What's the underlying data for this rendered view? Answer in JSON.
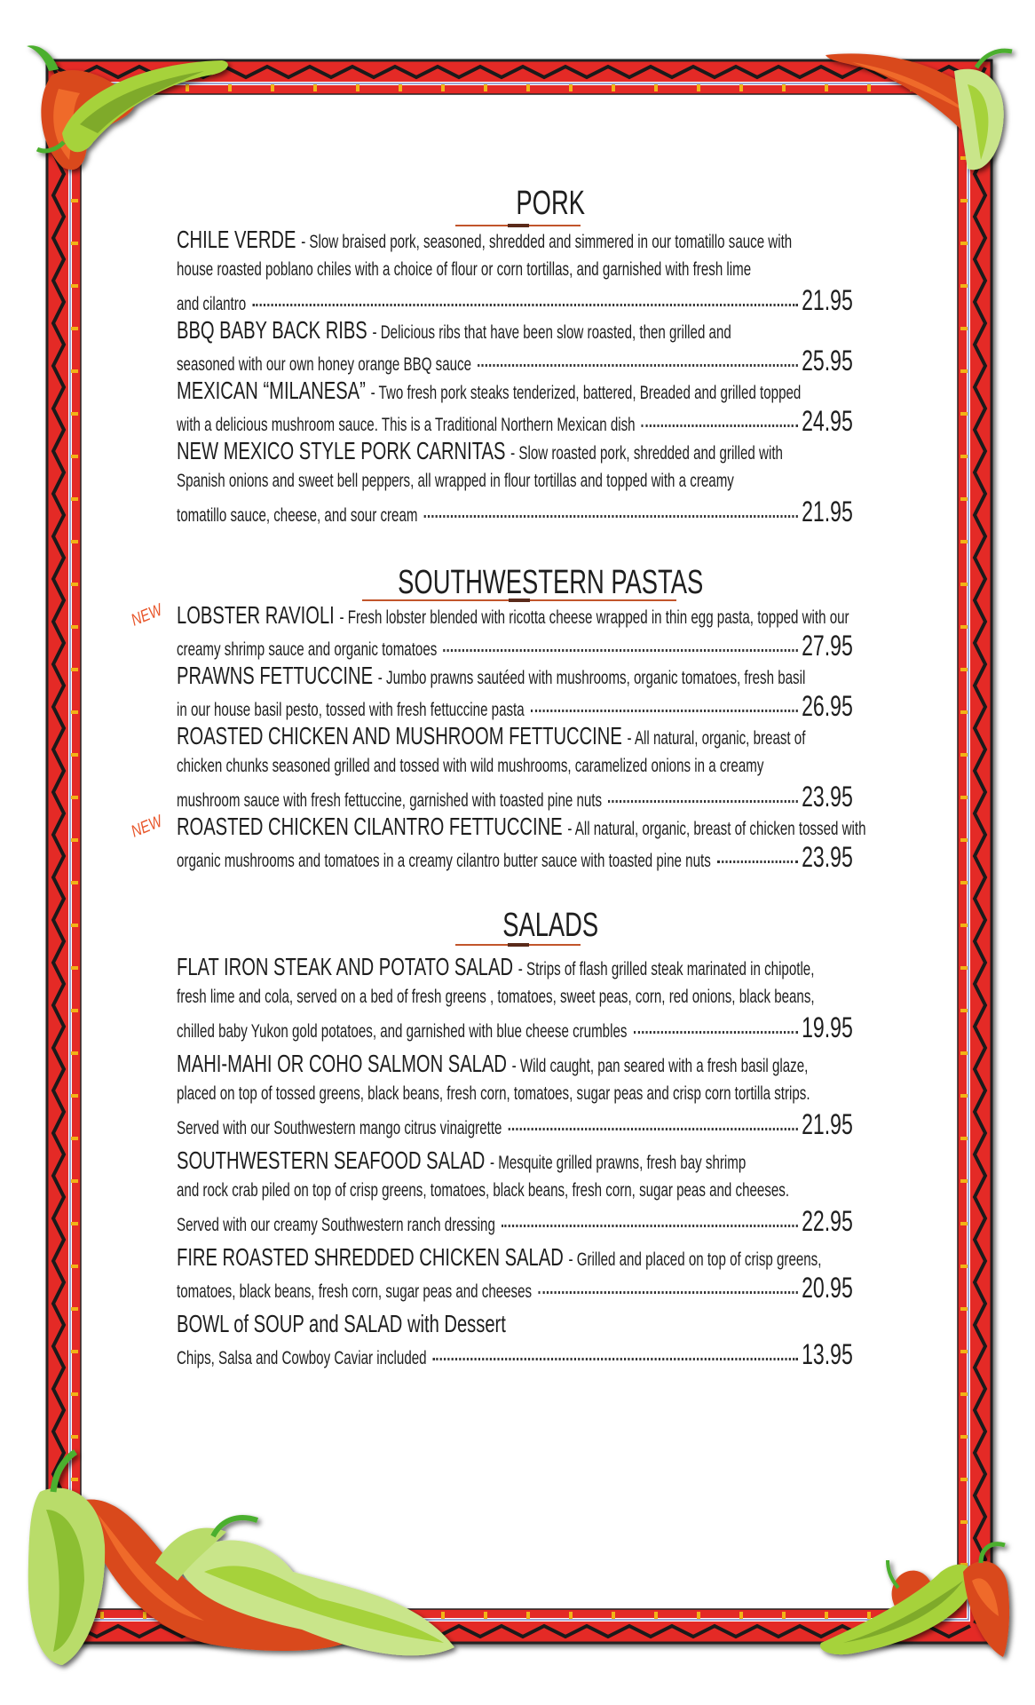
{
  "colors": {
    "frame_red": "#e42a25",
    "zigzag": "#1a1a1a",
    "accent_line": "#c2552b",
    "new_badge": "#e8562a",
    "stripe_blue": "#7f86c4",
    "tick_gold": "#f2b316"
  },
  "sections": [
    {
      "title": "PORK",
      "items": [
        {
          "name": "CHILE VERDE",
          "lines": [
            "- Slow braised pork, seasoned, shredded and simmered in our tomatillo sauce with",
            "house roasted poblano chiles with a choice of flour or corn tortillas, and garnished with fresh lime",
            "and cilantro"
          ],
          "price": "21.95"
        },
        {
          "name": "BBQ BABY BACK RIBS",
          "lines": [
            "- Delicious ribs that have been slow roasted, then grilled and",
            "seasoned with our own honey orange BBQ sauce"
          ],
          "price": "25.95"
        },
        {
          "name": "MEXICAN “MILANESA”",
          "lines": [
            "- Two fresh pork steaks tenderized, battered, Breaded and grilled topped",
            "with a delicious mushroom sauce. This is a Traditional Northern Mexican dish"
          ],
          "price": "24.95"
        },
        {
          "name": "NEW MEXICO STYLE PORK CARNITAS",
          "lines": [
            "- Slow roasted pork, shredded and grilled with",
            "Spanish onions and sweet bell peppers, all wrapped in flour tortillas and topped with a creamy",
            "tomatillo sauce, cheese, and sour cream"
          ],
          "price": "21.95"
        }
      ]
    },
    {
      "title": "SOUTHWESTERN PASTAS",
      "items": [
        {
          "badge": "NEW",
          "name": "LOBSTER RAVIOLI",
          "lines": [
            "- Fresh lobster blended with ricotta cheese wrapped in thin egg pasta, topped with our",
            "creamy shrimp sauce and organic tomatoes"
          ],
          "price": "27.95"
        },
        {
          "name": "PRAWNS FETTUCCINE",
          "lines": [
            "- Jumbo prawns sautéed with mushrooms, organic tomatoes, fresh basil",
            "in our house basil pesto, tossed with fresh fettuccine pasta"
          ],
          "price": "26.95"
        },
        {
          "name": "ROASTED CHICKEN AND MUSHROOM FETTUCCINE",
          "lines": [
            "- All natural, organic, breast of",
            "chicken chunks seasoned grilled and tossed with wild mushrooms, caramelized onions in a creamy",
            "mushroom sauce with fresh fettuccine, garnished with toasted pine nuts"
          ],
          "price": "23.95"
        },
        {
          "badge": "NEW",
          "name": "ROASTED CHICKEN CILANTRO FETTUCCINE",
          "lines": [
            "- All natural, organic, breast of chicken tossed with",
            "organic mushrooms and tomatoes in a creamy cilantro butter sauce with toasted pine nuts"
          ],
          "price": "23.95"
        }
      ]
    },
    {
      "title": "SALADS",
      "items": [
        {
          "name": "FLAT IRON STEAK AND POTATO SALAD",
          "lines": [
            "- Strips of flash grilled steak marinated in chipotle,",
            "fresh lime and cola, served on a bed of fresh greens , tomatoes, sweet peas, corn, red onions, black beans,",
            "chilled baby Yukon gold potatoes, and garnished with blue cheese crumbles"
          ],
          "price": "19.95"
        },
        {
          "name": "MAHI-MAHI OR COHO SALMON SALAD",
          "lines": [
            "- Wild caught, pan seared with a fresh basil glaze,",
            "placed on top of tossed greens, black beans, fresh corn, tomatoes, sugar peas and crisp corn tortilla strips.",
            "Served with our Southwestern mango citrus vinaigrette"
          ],
          "price": "21.95"
        },
        {
          "name": "SOUTHWESTERN SEAFOOD SALAD",
          "lines": [
            "- Mesquite grilled prawns, fresh bay shrimp",
            "and rock crab piled on top of crisp greens, tomatoes, black beans, fresh corn, sugar peas and cheeses.",
            "Served with our creamy Southwestern ranch dressing"
          ],
          "price": "22.95"
        },
        {
          "name": "FIRE ROASTED SHREDDED CHICKEN SALAD",
          "lines": [
            "- Grilled and placed on top of crisp greens,",
            "tomatoes, black beans, fresh corn, sugar peas and cheeses"
          ],
          "price": "20.95"
        },
        {
          "name": "BOWL of SOUP and SALAD with Dessert",
          "lines": [
            "",
            "Chips, Salsa and Cowboy Caviar included"
          ],
          "price": "13.95"
        }
      ]
    }
  ]
}
